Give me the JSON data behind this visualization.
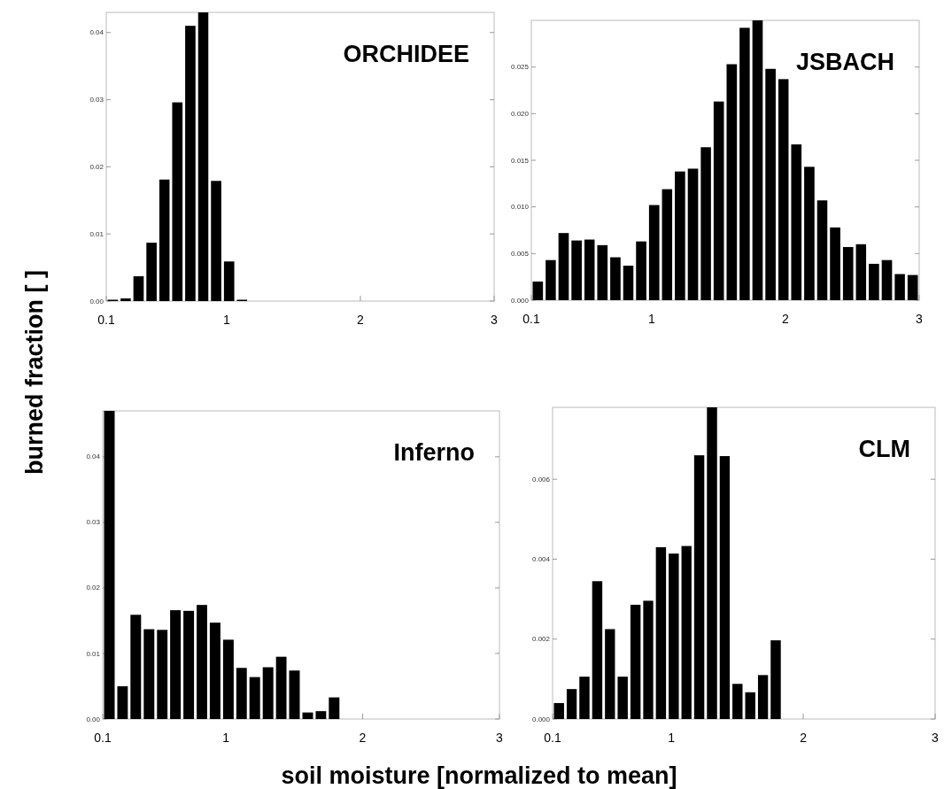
{
  "chart_data": [
    {
      "type": "histogram",
      "title": "ORCHIDEE",
      "ylabel": "burned fraction [ ]",
      "color": "#000000",
      "bins": [
        0.1,
        0.197,
        0.293,
        0.39,
        0.487,
        0.583,
        0.68,
        0.777,
        0.873,
        0.97,
        1.067,
        1.163,
        1.26,
        1.357,
        1.453,
        1.55,
        1.647,
        1.743,
        1.84,
        1.937,
        2.033,
        2.13,
        2.227,
        2.323,
        2.42,
        2.517,
        2.613,
        2.71,
        2.807,
        2.903,
        3
      ],
      "values": [
        0.0002,
        0.0004,
        0.0037,
        0.0087,
        0.0181,
        0.0296,
        0.041,
        0.043,
        0.0179,
        0.0059,
        0.0002,
        0,
        0,
        0,
        0,
        0,
        0,
        0,
        0,
        0,
        0,
        0,
        0,
        0,
        0,
        0,
        0,
        0,
        0,
        0
      ],
      "xlim": [
        0.1,
        3
      ],
      "xticks": [
        0.1,
        1,
        2,
        3
      ],
      "ylim": [
        0,
        0.043
      ],
      "yticks": [
        {
          "value": 0,
          "label": "0.00"
        },
        {
          "value": 0.01,
          "label": "0.01"
        },
        {
          "value": 0.02,
          "label": "0.02"
        },
        {
          "value": 0.03,
          "label": "0.03"
        },
        {
          "value": 0.04,
          "label": "0.04"
        }
      ]
    },
    {
      "type": "histogram",
      "title": "JSBACH",
      "color": "#000000",
      "bins": [
        0.1,
        0.197,
        0.293,
        0.39,
        0.487,
        0.583,
        0.68,
        0.777,
        0.873,
        0.97,
        1.067,
        1.163,
        1.26,
        1.357,
        1.453,
        1.55,
        1.647,
        1.743,
        1.84,
        1.937,
        2.033,
        2.13,
        2.227,
        2.323,
        2.42,
        2.517,
        2.613,
        2.71,
        2.807,
        2.903,
        3
      ],
      "values": [
        0.002,
        0.0043,
        0.0072,
        0.0064,
        0.0065,
        0.0059,
        0.0046,
        0.0037,
        0.0063,
        0.0102,
        0.0119,
        0.0138,
        0.0141,
        0.0164,
        0.0213,
        0.0253,
        0.0292,
        0.03,
        0.0248,
        0.0237,
        0.0167,
        0.0143,
        0.0107,
        0.0078,
        0.0057,
        0.006,
        0.0039,
        0.0043,
        0.0028,
        0.0027
      ],
      "xlim": [
        0.1,
        3
      ],
      "xticks": [
        0.1,
        1,
        2,
        3
      ],
      "ylim": [
        0,
        0.03
      ],
      "yticks": [
        {
          "value": 0,
          "label": "0.000"
        },
        {
          "value": 0.005,
          "label": "0.005"
        },
        {
          "value": 0.01,
          "label": "0.010"
        },
        {
          "value": 0.015,
          "label": "0.015"
        },
        {
          "value": 0.02,
          "label": "0.020"
        },
        {
          "value": 0.025,
          "label": "0.025"
        }
      ]
    },
    {
      "type": "histogram",
      "title": "Inferno",
      "xlabel": "soil moisture [normalized to mean]",
      "color": "#000000",
      "bins": [
        0.1,
        0.197,
        0.293,
        0.39,
        0.487,
        0.583,
        0.68,
        0.777,
        0.873,
        0.97,
        1.067,
        1.163,
        1.26,
        1.357,
        1.453,
        1.55,
        1.647,
        1.743,
        1.84,
        1.937,
        2.033,
        2.13,
        2.227,
        2.323,
        2.42,
        2.517,
        2.613,
        2.71,
        2.807,
        2.903,
        3
      ],
      "values": [
        0.047,
        0.005,
        0.0159,
        0.0137,
        0.0136,
        0.0166,
        0.0165,
        0.0174,
        0.0147,
        0.0121,
        0.0078,
        0.0064,
        0.0079,
        0.0095,
        0.0074,
        0.001,
        0.0012,
        0.0033,
        0,
        0,
        0,
        0,
        0,
        0,
        0,
        0,
        0,
        0,
        0,
        0
      ],
      "xlim": [
        0.1,
        3
      ],
      "xticks": [
        0.1,
        1,
        2,
        3
      ],
      "ylim": [
        0,
        0.047
      ],
      "yticks": [
        {
          "value": 0,
          "label": "0.00"
        },
        {
          "value": 0.01,
          "label": "0.01"
        },
        {
          "value": 0.02,
          "label": "0.02"
        },
        {
          "value": 0.03,
          "label": "0.03"
        },
        {
          "value": 0.04,
          "label": "0.04"
        }
      ]
    },
    {
      "type": "histogram",
      "title": "CLM",
      "color": "#000000",
      "bins": [
        0.1,
        0.197,
        0.293,
        0.39,
        0.487,
        0.583,
        0.68,
        0.777,
        0.873,
        0.97,
        1.067,
        1.163,
        1.26,
        1.357,
        1.453,
        1.55,
        1.647,
        1.743,
        1.84,
        1.937,
        2.033,
        2.13,
        2.227,
        2.323,
        2.42,
        2.517,
        2.613,
        2.71,
        2.807,
        2.903,
        3
      ],
      "values": [
        0.0004,
        0.00075,
        0.00106,
        0.00345,
        0.00225,
        0.00106,
        0.00286,
        0.00296,
        0.0043,
        0.00414,
        0.00433,
        0.0066,
        0.0078,
        0.00658,
        0.00088,
        0.00067,
        0.0011,
        0.00197,
        0,
        0,
        0,
        0,
        0,
        0,
        0,
        0,
        0,
        0,
        0,
        0
      ],
      "xlim": [
        0.1,
        3
      ],
      "xticks": [
        0.1,
        1,
        2,
        3
      ],
      "ylim": [
        0,
        0.0078
      ],
      "yticks": [
        {
          "value": 0,
          "label": "0.000"
        },
        {
          "value": 0.002,
          "label": "0.002"
        },
        {
          "value": 0.004,
          "label": "0.004"
        },
        {
          "value": 0.006,
          "label": "0.006"
        }
      ]
    }
  ]
}
